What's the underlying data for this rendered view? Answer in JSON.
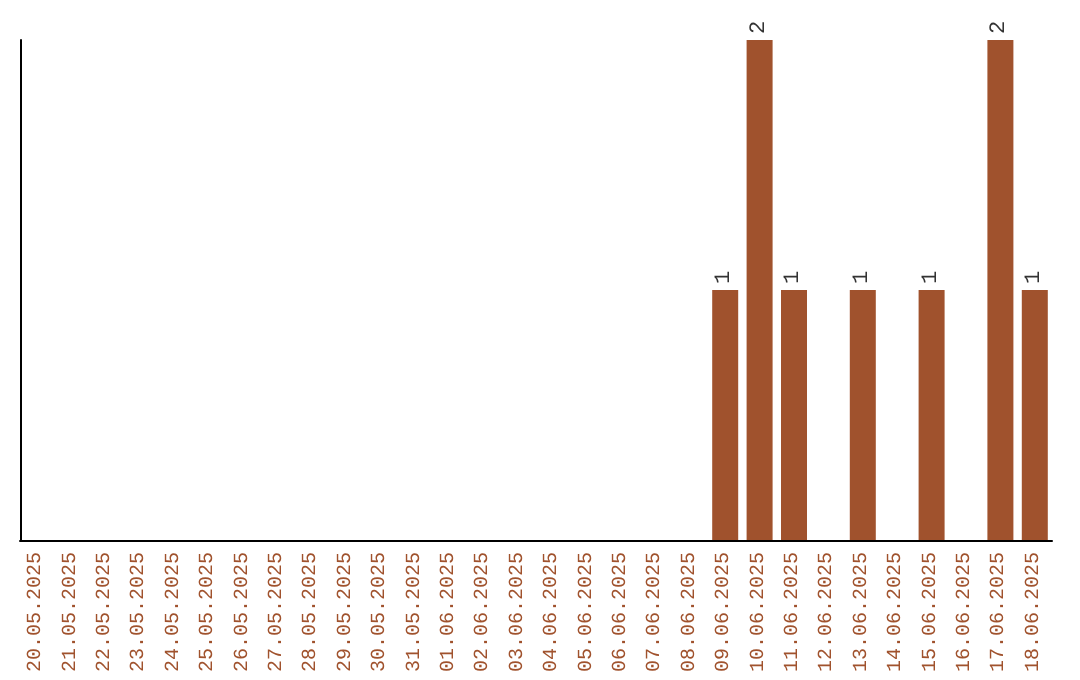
{
  "chart_data": {
    "type": "bar",
    "categories": [
      "20.05.2025",
      "21.05.2025",
      "22.05.2025",
      "23.05.2025",
      "24.05.2025",
      "25.05.2025",
      "26.05.2025",
      "27.05.2025",
      "28.05.2025",
      "29.05.2025",
      "30.05.2025",
      "31.05.2025",
      "01.06.2025",
      "02.06.2025",
      "03.06.2025",
      "04.06.2025",
      "05.06.2025",
      "06.06.2025",
      "07.06.2025",
      "08.06.2025",
      "09.06.2025",
      "10.06.2025",
      "11.06.2025",
      "12.06.2025",
      "13.06.2025",
      "14.06.2025",
      "15.06.2025",
      "16.06.2025",
      "17.06.2025",
      "18.06.2025"
    ],
    "values": [
      null,
      null,
      null,
      null,
      null,
      null,
      null,
      null,
      null,
      null,
      null,
      null,
      null,
      null,
      null,
      null,
      null,
      null,
      null,
      null,
      1,
      2,
      1,
      null,
      1,
      null,
      1,
      null,
      2,
      1
    ],
    "value_labels": [
      null,
      null,
      null,
      null,
      null,
      null,
      null,
      null,
      null,
      null,
      null,
      null,
      null,
      null,
      null,
      null,
      null,
      null,
      null,
      null,
      "1",
      "2",
      "1",
      null,
      "1",
      null,
      "1",
      null,
      "2",
      "1"
    ],
    "color": "#a0522d",
    "tick_labels": "x",
    "grid": false
  }
}
